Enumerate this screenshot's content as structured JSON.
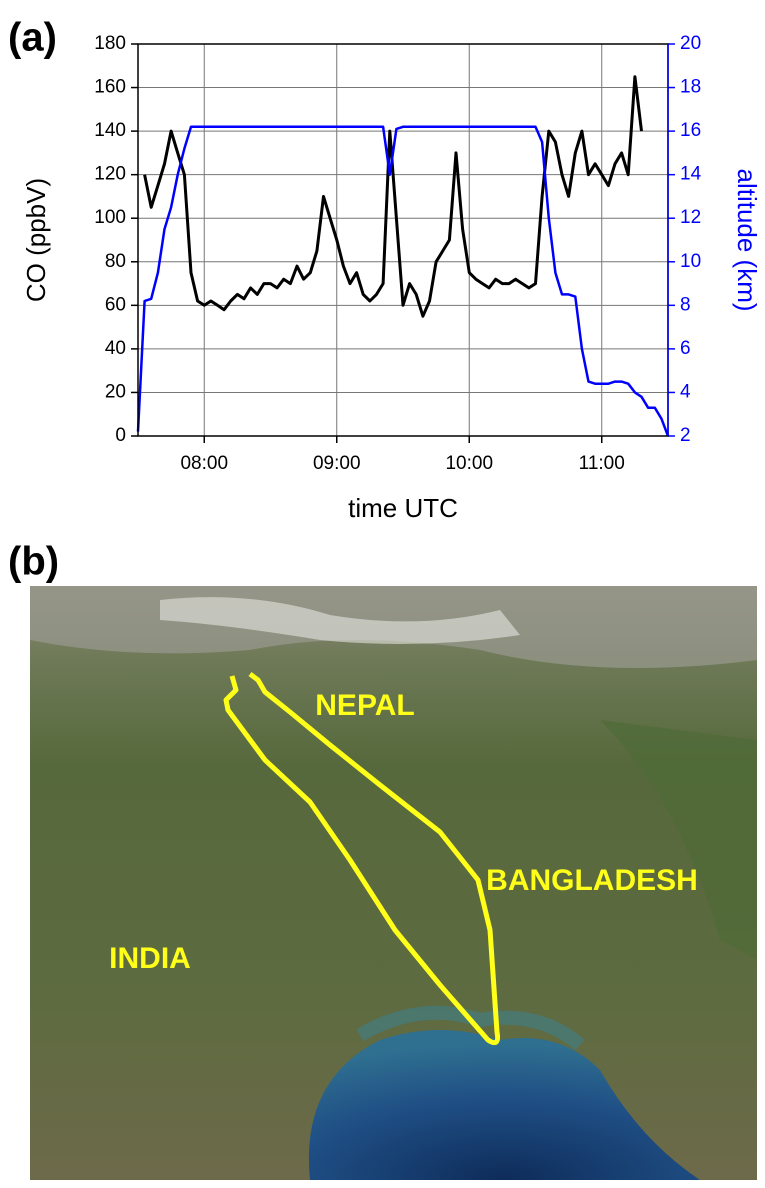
{
  "panel_a_label": "(a)",
  "panel_b_label": "(b)",
  "chart_data": {
    "type": "line",
    "x_label": "time UTC",
    "y_label": "CO (ppbV)",
    "y2_label": "altitude (km)",
    "xlim": [
      7.5,
      11.5
    ],
    "xticks": [
      {
        "value": 8,
        "label": "08:00"
      },
      {
        "value": 9,
        "label": "09:00"
      },
      {
        "value": 10,
        "label": "10:00"
      },
      {
        "value": 11,
        "label": "11:00"
      }
    ],
    "ylim": [
      0,
      180
    ],
    "yticks": [
      0,
      20,
      40,
      60,
      80,
      100,
      120,
      140,
      160,
      180
    ],
    "y2lim": [
      2,
      20
    ],
    "y2ticks": [
      2,
      4,
      6,
      8,
      10,
      12,
      14,
      16,
      18,
      20
    ],
    "grid": true,
    "x": [
      7.5,
      7.55,
      7.6,
      7.65,
      7.7,
      7.75,
      7.8,
      7.85,
      7.9,
      7.95,
      8,
      8.05,
      8.1,
      8.15,
      8.2,
      8.25,
      8.3,
      8.35,
      8.4,
      8.45,
      8.5,
      8.55,
      8.6,
      8.65,
      8.7,
      8.75,
      8.8,
      8.85,
      8.9,
      8.95,
      9,
      9.05,
      9.1,
      9.15,
      9.2,
      9.25,
      9.3,
      9.35,
      9.4,
      9.45,
      9.5,
      9.55,
      9.6,
      9.65,
      9.7,
      9.75,
      9.8,
      9.85,
      9.9,
      9.95,
      10,
      10.05,
      10.1,
      10.15,
      10.2,
      10.25,
      10.3,
      10.35,
      10.4,
      10.45,
      10.5,
      10.55,
      10.6,
      10.65,
      10.7,
      10.75,
      10.8,
      10.85,
      10.9,
      10.95,
      11,
      11.05,
      11.1,
      11.15,
      11.2,
      11.25,
      11.3,
      11.35,
      11.4,
      11.45,
      11.5
    ],
    "series": [
      {
        "name": "CO",
        "color": "#000000",
        "values": [
          null,
          120,
          105,
          115,
          125,
          140,
          130,
          120,
          75,
          62,
          60,
          62,
          60,
          58,
          62,
          65,
          63,
          68,
          65,
          70,
          70,
          68,
          72,
          70,
          78,
          72,
          75,
          85,
          110,
          100,
          90,
          78,
          70,
          75,
          65,
          62,
          65,
          70,
          140,
          100,
          60,
          70,
          65,
          55,
          62,
          80,
          85,
          90,
          130,
          95,
          75,
          72,
          70,
          68,
          72,
          70,
          70,
          72,
          70,
          68,
          70,
          110,
          140,
          135,
          120,
          110,
          130,
          140,
          120,
          125,
          120,
          115,
          125,
          130,
          120,
          165,
          140,
          null,
          null,
          null,
          null
        ]
      },
      {
        "name": "altitude",
        "color": "#0000ff",
        "axis": "y2",
        "values": [
          2.2,
          8.2,
          8.3,
          9.5,
          11.5,
          12.5,
          14.0,
          15.2,
          16.2,
          16.2,
          16.2,
          16.2,
          16.2,
          16.2,
          16.2,
          16.2,
          16.2,
          16.2,
          16.2,
          16.2,
          16.2,
          16.2,
          16.2,
          16.2,
          16.2,
          16.2,
          16.2,
          16.2,
          16.2,
          16.2,
          16.2,
          16.2,
          16.2,
          16.2,
          16.2,
          16.2,
          16.2,
          16.2,
          14.0,
          16.1,
          16.2,
          16.2,
          16.2,
          16.2,
          16.2,
          16.2,
          16.2,
          16.2,
          16.2,
          16.2,
          16.2,
          16.2,
          16.2,
          16.2,
          16.2,
          16.2,
          16.2,
          16.2,
          16.2,
          16.2,
          16.2,
          15.5,
          12,
          9.5,
          8.5,
          8.5,
          8.4,
          6.0,
          4.5,
          4.4,
          4.4,
          4.4,
          4.5,
          4.5,
          4.4,
          4.0,
          3.8,
          3.3,
          3.3,
          2.8,
          2.0
        ]
      }
    ]
  },
  "map": {
    "labels": [
      "NEPAL",
      "BANGLADESH",
      "INDIA"
    ]
  }
}
